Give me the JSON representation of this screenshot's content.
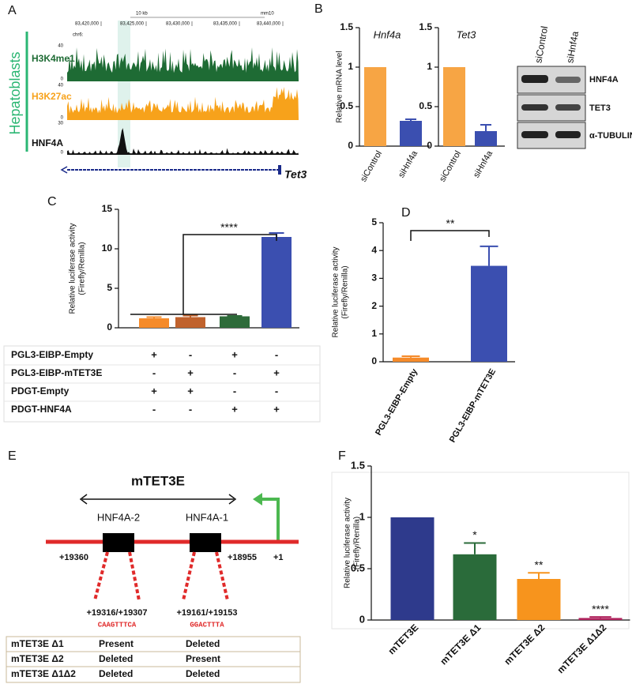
{
  "panel_a": {
    "letter": "A",
    "cell_type": "Hepatoblasts",
    "chromosome": "chr6:",
    "scale": "10 kb",
    "assembly": "mm10",
    "coordinates": [
      "83,420,000",
      "83,425,000",
      "83,430,000",
      "83,435,000",
      "83,440,000"
    ],
    "tracks": [
      {
        "name": "H3K4me1",
        "max": 40,
        "min": 0
      },
      {
        "name": "H3K27ac",
        "max": 40,
        "min": 0
      },
      {
        "name": "HNF4A",
        "max": 30,
        "min": 0
      }
    ],
    "gene": "Tet3"
  },
  "panel_letters": {
    "b": "B",
    "c": "C",
    "d": "D",
    "e": "E",
    "f": "F"
  },
  "western_blot": {
    "lanes": [
      "siControl",
      "siHnf4a"
    ],
    "bands": [
      "HNF4A",
      "TET3",
      "α-TUBULIN"
    ]
  },
  "chart_data": [
    {
      "type": "bar",
      "title": "Hnf4a",
      "ylabel": [
        "Relative mRNA level"
      ],
      "categories": [
        "siControl",
        "siHnf4a"
      ],
      "values": [
        1,
        0.32
      ],
      "errors": [
        null,
        0.02
      ],
      "colors": [
        "#f7a544",
        "#3b4fb0"
      ],
      "ylim": [
        0,
        1.5
      ],
      "yticks": [
        0,
        0.5,
        1,
        1.5
      ]
    },
    {
      "type": "bar",
      "title": "Tet3",
      "categories": [
        "siControl",
        "siHnf4a"
      ],
      "values": [
        1,
        0.19
      ],
      "errors": [
        null,
        0.08
      ],
      "colors": [
        "#f7a544",
        "#3b4fb0"
      ],
      "ylim": [
        0,
        1.5
      ],
      "yticks": [
        0,
        0.5,
        1,
        1.5
      ]
    },
    {
      "type": "bar",
      "ylabel": [
        "Relative luciferase activity",
        "(Firefly/Renilla)"
      ],
      "categories": [
        null,
        null,
        null,
        null
      ],
      "values": [
        1.2,
        1.35,
        1.45,
        11.5
      ],
      "errors": [
        0.15,
        0.2,
        0.05,
        0.5
      ],
      "colors": [
        "#f58b2a",
        "#c0622d",
        "#2e6b3a",
        "#3b4fb0"
      ],
      "ylim": [
        0,
        15
      ],
      "yticks": [
        0,
        5,
        10,
        15
      ],
      "annotation": "****",
      "table": [
        {
          "label": "PGL3-EIBP-Empty",
          "cells": [
            "+",
            "-",
            "+",
            "-"
          ]
        },
        {
          "label": "PGL3-EIBP-mTET3E",
          "cells": [
            "-",
            "+",
            "-",
            "+"
          ]
        },
        {
          "label": "PDGT-Empty",
          "cells": [
            "+",
            "+",
            "-",
            "-"
          ]
        },
        {
          "label": "PDGT-HNF4A",
          "cells": [
            "-",
            "-",
            "+",
            "+"
          ]
        }
      ]
    },
    {
      "type": "bar",
      "ylabel": [
        "Relative luciferase activity",
        "(Firefly/Renilla)"
      ],
      "categories": [
        "PGL3-EIBP-Empty",
        "PGL3-EIBP-mTET3E"
      ],
      "values": [
        0.15,
        3.45
      ],
      "errors": [
        0.05,
        0.7
      ],
      "colors": [
        "#f58b2a",
        "#3b4fb0"
      ],
      "ylim": [
        0,
        5
      ],
      "yticks": [
        0,
        1,
        2,
        3,
        4,
        5
      ],
      "annotation": "**"
    },
    {
      "type": "bar",
      "ylabel": [
        "Relative luciferase activity",
        "(Firefly/Renilla)"
      ],
      "categories": [
        "mTET3E",
        "mTET3E Δ1",
        "mTET3E Δ2",
        "mTET3E Δ1Δ2"
      ],
      "values": [
        1,
        0.64,
        0.4,
        0.02
      ],
      "errors": [
        null,
        0.11,
        0.06,
        0.01
      ],
      "colors": [
        "#2e3a8c",
        "#2a6b3a",
        "#f7941d",
        "#b0245e"
      ],
      "ylim": [
        0,
        1.5
      ],
      "yticks": [
        0,
        0.5,
        1,
        1.5
      ],
      "bar_annotations": [
        null,
        "*",
        "**",
        "****"
      ]
    }
  ],
  "panel_e": {
    "title": "mTET3E",
    "sites": [
      "HNF4A-2",
      "HNF4A-1"
    ],
    "positions": [
      "+19360",
      "+18955",
      "+1"
    ],
    "site_positions": [
      "+19316/+19307",
      "+19161/+19153"
    ],
    "sequences": [
      "CAAGTTTCA",
      "GGACTTTA"
    ],
    "table": [
      [
        "mTET3E Δ1",
        "Present",
        "Deleted"
      ],
      [
        "mTET3E Δ2",
        "Deleted",
        "Present"
      ],
      [
        "mTET3E Δ1Δ2",
        "Deleted",
        "Deleted"
      ]
    ]
  }
}
